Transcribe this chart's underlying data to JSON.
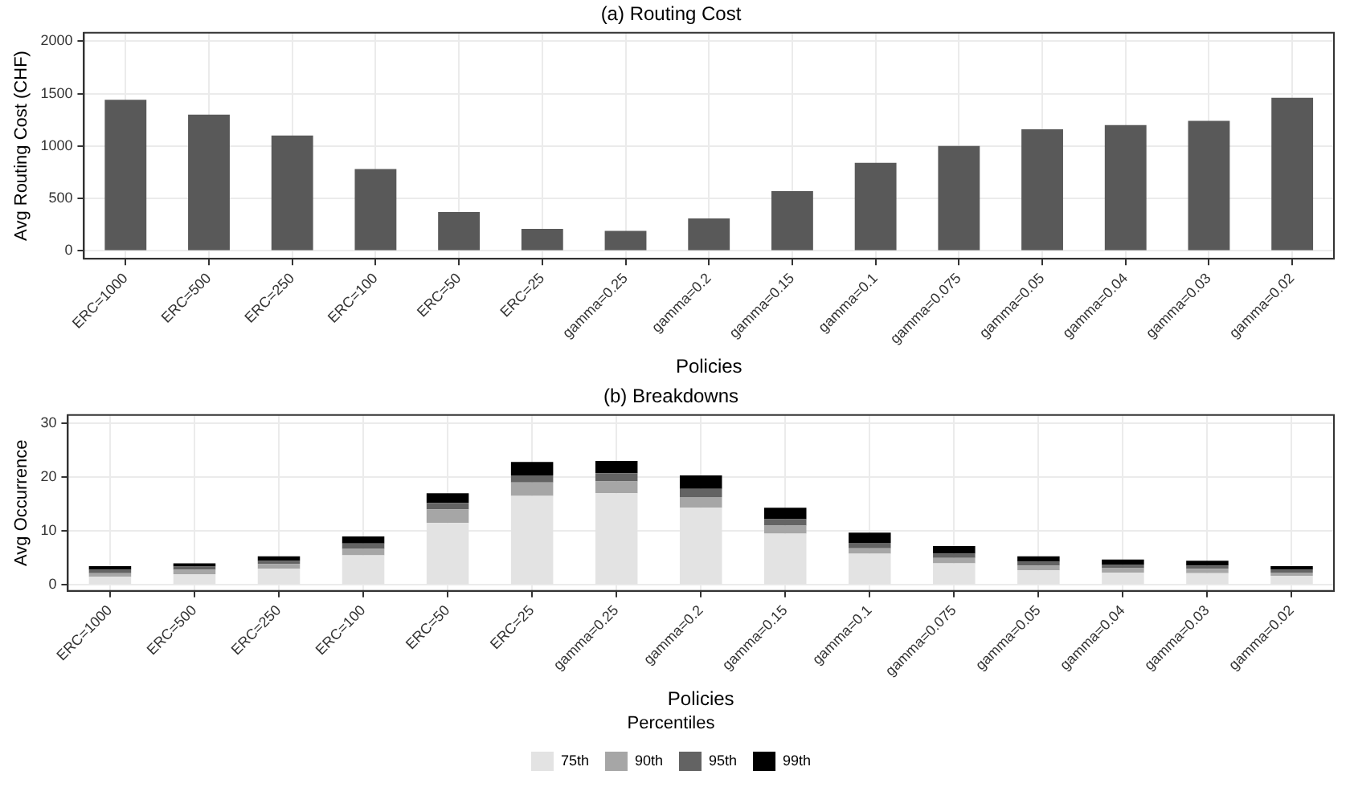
{
  "chart_data": [
    {
      "type": "bar",
      "title": "(a) Routing Cost",
      "xlabel": "Policies",
      "ylabel": "Avg Routing Cost (CHF)",
      "categories": [
        "ERC=1000",
        "ERC=500",
        "ERC=250",
        "ERC=100",
        "ERC=50",
        "ERC=25",
        "gamma=0.25",
        "gamma=0.2",
        "gamma=0.15",
        "gamma=0.1",
        "gamma=0.075",
        "gamma=0.05",
        "gamma=0.04",
        "gamma=0.03",
        "gamma=0.02"
      ],
      "values": [
        1440,
        1300,
        1100,
        780,
        370,
        210,
        190,
        310,
        570,
        840,
        1000,
        1160,
        1200,
        1240,
        1460
      ],
      "color": "#595959",
      "ylim": [
        -75,
        2080
      ],
      "yticks": [
        0,
        500,
        1000,
        1500,
        2000
      ],
      "grid": true,
      "legend": false
    },
    {
      "type": "bar",
      "title": "(b) Breakdowns",
      "xlabel": "Policies",
      "ylabel": "Avg Occurrence",
      "legend_title": "Percentiles",
      "categories": [
        "ERC=1000",
        "ERC=500",
        "ERC=250",
        "ERC=100",
        "ERC=50",
        "ERC=25",
        "gamma=0.25",
        "gamma=0.2",
        "gamma=0.15",
        "gamma=0.1",
        "gamma=0.075",
        "gamma=0.05",
        "gamma=0.04",
        "gamma=0.03",
        "gamma=0.02"
      ],
      "stacked": true,
      "series": [
        {
          "name": "75th",
          "color": "#e3e3e3",
          "values": [
            1.5,
            2,
            3,
            5.5,
            11.5,
            16.5,
            17,
            14.3,
            9.5,
            5.8,
            4,
            2.7,
            2.3,
            2.2,
            1.7
          ]
        },
        {
          "name": "90th",
          "color": "#a6a6a6",
          "values": [
            0.7,
            0.8,
            0.9,
            1.2,
            2.5,
            2.5,
            2.2,
            2,
            1.5,
            1,
            1,
            0.9,
            0.8,
            0.8,
            0.6
          ]
        },
        {
          "name": "95th",
          "color": "#636363",
          "values": [
            0.6,
            0.6,
            0.6,
            1,
            1.2,
            1.3,
            1.5,
            1.5,
            1.2,
            1,
            0.8,
            0.7,
            0.6,
            0.6,
            0.5
          ]
        },
        {
          "name": "99th",
          "color": "#000000",
          "values": [
            0.7,
            0.6,
            0.8,
            1.3,
            1.8,
            2.5,
            2.3,
            2.5,
            2.1,
            1.9,
            1.4,
            1,
            1,
            0.9,
            0.7
          ]
        }
      ],
      "ylim": [
        -1.1,
        31.5
      ],
      "yticks": [
        0,
        10,
        20,
        30
      ],
      "grid": true,
      "legend": "bottom"
    }
  ]
}
